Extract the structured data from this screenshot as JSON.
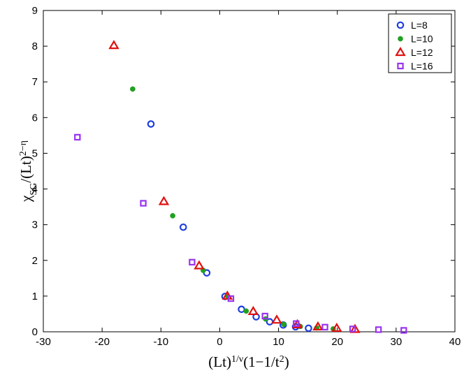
{
  "chart_data": {
    "type": "scatter",
    "title": "",
    "xlabel": {
      "base": "(Lt)",
      "sup": "1/ν",
      "rest": "(1−1/t",
      "sup2": "2",
      "end": ")"
    },
    "ylabel": {
      "base": "χ",
      "sub": "SG",
      "mid": "/(Lt)",
      "sup": "2−η"
    },
    "xlim": [
      -30,
      40
    ],
    "ylim": [
      0,
      9
    ],
    "xticks": [
      -30,
      -20,
      -10,
      0,
      10,
      20,
      30,
      40
    ],
    "yticks": [
      0,
      1,
      2,
      3,
      4,
      5,
      6,
      7,
      8,
      9
    ],
    "grid": false,
    "legend_position": "top-right",
    "series": [
      {
        "name": "L=8",
        "marker": "circle-open",
        "color": "#1f3fe0",
        "points": [
          [
            -11.7,
            5.82
          ],
          [
            -6.2,
            2.93
          ],
          [
            -2.2,
            1.65
          ],
          [
            0.9,
            0.99
          ],
          [
            3.7,
            0.63
          ],
          [
            6.2,
            0.42
          ],
          [
            8.5,
            0.28
          ],
          [
            10.8,
            0.19
          ],
          [
            12.9,
            0.14
          ],
          [
            15.1,
            0.1
          ]
        ]
      },
      {
        "name": "L=10",
        "marker": "dot",
        "color": "#22a022",
        "points": [
          [
            -14.8,
            6.8
          ],
          [
            -8.0,
            3.25
          ],
          [
            -2.8,
            1.72
          ],
          [
            1.3,
            1.0
          ],
          [
            4.5,
            0.58
          ],
          [
            7.8,
            0.36
          ],
          [
            10.9,
            0.21
          ],
          [
            13.7,
            0.15
          ],
          [
            16.5,
            0.11
          ],
          [
            19.3,
            0.08
          ]
        ]
      },
      {
        "name": "L=12",
        "marker": "triangle-open",
        "color": "#e01010",
        "points": [
          [
            -18.0,
            8.02
          ],
          [
            -9.5,
            3.65
          ],
          [
            -3.5,
            1.85
          ],
          [
            1.3,
            1.0
          ],
          [
            5.7,
            0.57
          ],
          [
            9.7,
            0.33
          ],
          [
            13.2,
            0.2
          ],
          [
            16.7,
            0.14
          ],
          [
            19.9,
            0.1
          ],
          [
            23.0,
            0.07
          ]
        ]
      },
      {
        "name": "L=16",
        "marker": "square-open",
        "color": "#9933ee",
        "points": [
          [
            -24.2,
            5.45
          ],
          [
            -13.0,
            3.6
          ],
          [
            -4.7,
            1.95
          ],
          [
            1.9,
            0.93
          ],
          [
            7.7,
            0.44
          ],
          [
            13.0,
            0.23
          ],
          [
            17.9,
            0.13
          ],
          [
            22.6,
            0.08
          ],
          [
            27.0,
            0.06
          ],
          [
            31.3,
            0.04
          ]
        ]
      }
    ]
  }
}
